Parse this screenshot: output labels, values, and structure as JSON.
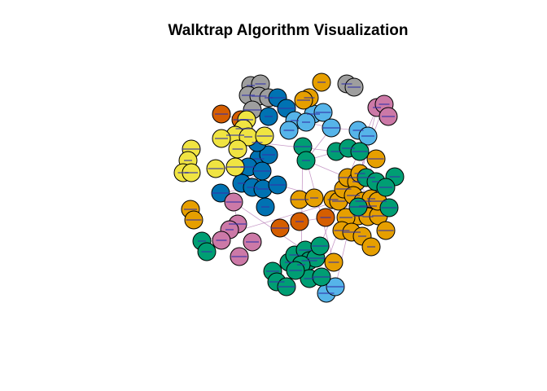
{
  "title": "Walktrap Algorithm Visualization",
  "community_colors": {
    "gray": "#9e9e9e",
    "blue": "#0072b2",
    "orange_red": "#d55e00",
    "yellow": "#f0e442",
    "sky_blue": "#56b4e9",
    "orange": "#e69f00",
    "green": "#009e73",
    "pink": "#cc79a7"
  },
  "edge_color": "#b070b0",
  "label_color": "#3333aa"
}
